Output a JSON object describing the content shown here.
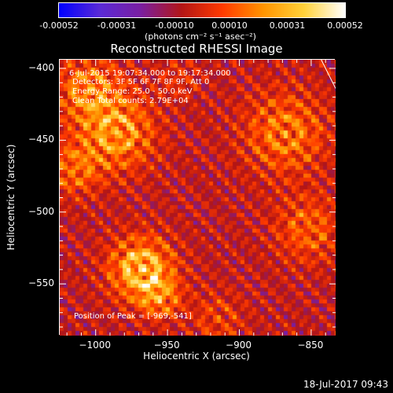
{
  "colors": {
    "background": "#000000",
    "colormap": [
      "#0000ff",
      "#5a2ad6",
      "#7a1fa0",
      "#b31616",
      "#ff3a00",
      "#ff9400",
      "#ffd23a",
      "#ffffff"
    ]
  },
  "colorbar": {
    "tick_labels": [
      "-0.00052",
      "-0.00031",
      "-0.00010",
      "0.00010",
      "0.00031",
      "0.00052"
    ],
    "tick_values": [
      -0.00052,
      -0.00031,
      -0.0001,
      0.0001,
      0.00031,
      0.00052
    ],
    "units": "(photons cm⁻² s⁻¹ asec⁻²)"
  },
  "info": {
    "time_range": "6-Jul-2015 19:07:34.000 to 19:17:34.000",
    "detectors": "Detectors: 3F 5F 6F 7F 8F 9F, Att 0",
    "energy": "Energy Range: 25.0 - 50.0 keV",
    "clean": "Clean    Total counts: 2.79E+04",
    "peak": "Position of Peak = [-969,-541]"
  },
  "timestamp": "18-Jul-2017 09:43",
  "chart_data": {
    "type": "heatmap",
    "title": "Reconstructed RHESSI Image",
    "xlabel": "Heliocentric X (arcsec)",
    "ylabel": "Heliocentric Y (arcsec)",
    "xlim": [
      -1025,
      -833
    ],
    "ylim": [
      -586,
      -394
    ],
    "x_ticks": [
      -1000,
      -950,
      -900,
      -850
    ],
    "y_ticks": [
      -550,
      -500,
      -450,
      -400
    ],
    "x_tick_labels": [
      "−1000",
      "−950",
      "−900",
      "−850"
    ],
    "y_tick_labels": [
      "−550",
      "−500",
      "−450",
      "−400"
    ],
    "value_range": [
      -0.00052,
      0.00052
    ],
    "peak_position": [
      -969,
      -541
    ],
    "limb_line": [
      [
        -843,
        -394
      ],
      [
        -833,
        -414
      ]
    ],
    "sources": [
      {
        "x": -1005,
        "y": -415,
        "sigma": 16,
        "amp": 0.00032
      },
      {
        "x": -985,
        "y": -445,
        "sigma": 18,
        "amp": 0.00038
      },
      {
        "x": -1015,
        "y": -470,
        "sigma": 13,
        "amp": 0.00026
      },
      {
        "x": -968,
        "y": -540,
        "sigma": 15,
        "amp": 0.00052
      },
      {
        "x": -955,
        "y": -560,
        "sigma": 10,
        "amp": 0.00028
      },
      {
        "x": -868,
        "y": -445,
        "sigma": 20,
        "amp": 0.0003
      },
      {
        "x": -852,
        "y": -512,
        "sigma": 16,
        "amp": 0.00024
      },
      {
        "x": -915,
        "y": -575,
        "sigma": 13,
        "amp": 0.00016
      },
      {
        "x": -942,
        "y": -408,
        "sigma": 10,
        "amp": 0.00012
      }
    ],
    "background_level": -6e-05,
    "ripple_amplitude": 0.00012
  }
}
